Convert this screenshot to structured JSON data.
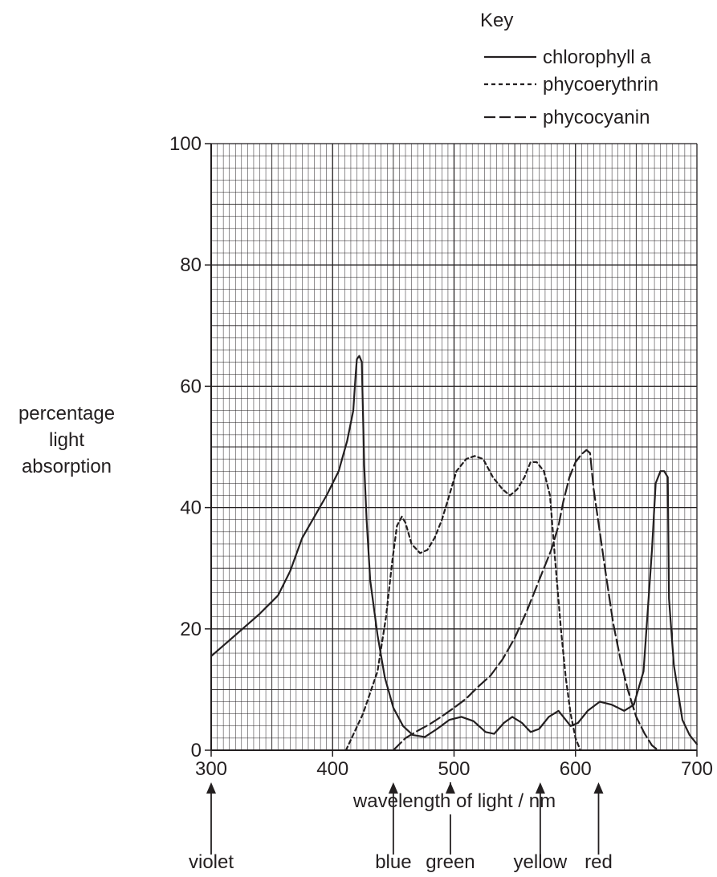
{
  "chart_data": {
    "type": "line",
    "xlabel": "wavelength of light / nm",
    "ylabel": [
      "percentage",
      "light",
      "absorption"
    ],
    "xlim": [
      300,
      700
    ],
    "ylim": [
      0,
      100
    ],
    "x_ticks": [
      300,
      400,
      500,
      600,
      700
    ],
    "y_ticks": [
      0,
      20,
      40,
      60,
      80,
      100
    ],
    "grid": true,
    "legend": {
      "title": "Key",
      "position": "top-right",
      "entries": [
        "chlorophyll a",
        "phycoerythrin",
        "phycocyanin"
      ]
    },
    "series": [
      {
        "name": "chlorophyll a",
        "style": "solid",
        "points": [
          [
            300,
            15.5
          ],
          [
            320,
            19
          ],
          [
            340,
            22.5
          ],
          [
            355,
            25.5
          ],
          [
            365,
            29.5
          ],
          [
            375,
            35
          ],
          [
            385,
            38.5
          ],
          [
            395,
            42
          ],
          [
            405,
            46
          ],
          [
            412,
            51
          ],
          [
            417,
            56
          ],
          [
            419,
            62
          ],
          [
            420,
            64.5
          ],
          [
            422,
            65
          ],
          [
            424,
            64
          ],
          [
            426,
            47
          ],
          [
            428,
            38
          ],
          [
            431,
            28
          ],
          [
            437,
            19
          ],
          [
            443,
            12
          ],
          [
            450,
            7
          ],
          [
            458,
            4
          ],
          [
            466,
            2.5
          ],
          [
            476,
            2.2
          ],
          [
            486,
            3.5
          ],
          [
            496,
            5
          ],
          [
            506,
            5.5
          ],
          [
            516,
            4.8
          ],
          [
            526,
            3
          ],
          [
            533,
            2.7
          ],
          [
            541,
            4.5
          ],
          [
            548,
            5.5
          ],
          [
            556,
            4.5
          ],
          [
            563,
            3
          ],
          [
            570,
            3.5
          ],
          [
            578,
            5.5
          ],
          [
            586,
            6.5
          ],
          [
            592,
            5
          ],
          [
            596,
            4
          ],
          [
            602,
            4.5
          ],
          [
            610,
            6.5
          ],
          [
            620,
            8
          ],
          [
            630,
            7.5
          ],
          [
            640,
            6.5
          ],
          [
            648,
            7.5
          ],
          [
            656,
            13
          ],
          [
            663,
            33
          ],
          [
            666,
            44
          ],
          [
            670,
            46
          ],
          [
            673,
            46
          ],
          [
            676,
            45
          ],
          [
            677,
            25
          ],
          [
            681,
            14
          ],
          [
            688,
            5
          ],
          [
            694,
            2.5
          ],
          [
            700,
            1
          ]
        ]
      },
      {
        "name": "phycoerythrin",
        "style": "dotted",
        "points": [
          [
            411,
            0
          ],
          [
            425,
            6
          ],
          [
            437,
            13
          ],
          [
            444,
            22
          ],
          [
            449,
            31
          ],
          [
            453,
            37
          ],
          [
            457,
            38.5
          ],
          [
            460,
            37.5
          ],
          [
            465,
            34
          ],
          [
            472,
            32.5
          ],
          [
            478,
            33
          ],
          [
            484,
            35
          ],
          [
            490,
            38
          ],
          [
            496,
            42
          ],
          [
            502,
            46
          ],
          [
            510,
            48
          ],
          [
            517,
            48.5
          ],
          [
            524,
            48
          ],
          [
            532,
            45
          ],
          [
            540,
            43
          ],
          [
            546,
            42
          ],
          [
            552,
            43
          ],
          [
            558,
            45
          ],
          [
            563,
            47.5
          ],
          [
            568,
            47.5
          ],
          [
            574,
            46
          ],
          [
            579,
            42
          ],
          [
            583,
            32
          ],
          [
            588,
            20
          ],
          [
            592,
            12
          ],
          [
            596,
            6
          ],
          [
            600,
            2
          ],
          [
            604,
            0
          ]
        ]
      },
      {
        "name": "phycocyanin",
        "style": "dashed",
        "points": [
          [
            450,
            0
          ],
          [
            460,
            2
          ],
          [
            470,
            3.2
          ],
          [
            480,
            4.3
          ],
          [
            490,
            5.6
          ],
          [
            500,
            7
          ],
          [
            510,
            8.5
          ],
          [
            520,
            10.5
          ],
          [
            530,
            12.3
          ],
          [
            540,
            15
          ],
          [
            550,
            18.5
          ],
          [
            560,
            23
          ],
          [
            570,
            28
          ],
          [
            580,
            33
          ],
          [
            586,
            37
          ],
          [
            590,
            41
          ],
          [
            595,
            45
          ],
          [
            600,
            47.5
          ],
          [
            605,
            48.8
          ],
          [
            609,
            49.5
          ],
          [
            612,
            49
          ],
          [
            615,
            43
          ],
          [
            620,
            36
          ],
          [
            625,
            29
          ],
          [
            631,
            21
          ],
          [
            637,
            15
          ],
          [
            643,
            10
          ],
          [
            650,
            5.5
          ],
          [
            657,
            2.7
          ],
          [
            663,
            0.8
          ],
          [
            668,
            0
          ]
        ]
      }
    ],
    "annotations": [
      {
        "label": "violet",
        "wavelength": 300
      },
      {
        "label": "blue",
        "wavelength": 450
      },
      {
        "label": "green",
        "wavelength": 497
      },
      {
        "label": "yellow",
        "wavelength": 571
      },
      {
        "label": "red",
        "wavelength": 619
      }
    ]
  }
}
